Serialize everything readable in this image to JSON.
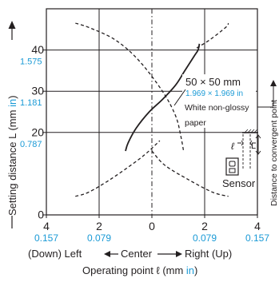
{
  "chart_data": {
    "type": "line",
    "xlim": [
      -4,
      4
    ],
    "ylim": [
      0,
      50
    ],
    "x_ticks": [
      {
        "value": -4,
        "label": "4",
        "label_in": "0.157"
      },
      {
        "value": -2,
        "label": "2",
        "label_in": "0.079"
      },
      {
        "value": 0,
        "label": "0",
        "label_in": ""
      },
      {
        "value": 2,
        "label": "2",
        "label_in": "0.079"
      },
      {
        "value": 4,
        "label": "4",
        "label_in": "0.157"
      }
    ],
    "y_ticks": [
      {
        "value": 0,
        "label": "0",
        "label_in": ""
      },
      {
        "value": 20,
        "label": "20",
        "label_in": "0.787"
      },
      {
        "value": 30,
        "label": "30",
        "label_in": "1.181"
      },
      {
        "value": 40,
        "label": "40",
        "label_in": "1.575"
      }
    ],
    "xlabel": {
      "prefix": "Operating point ℓ (mm ",
      "unit": "in",
      "suffix": ")"
    },
    "x_direction": {
      "left": "(Down) Left",
      "center": "Center",
      "right": "Right (Up)"
    },
    "ylabel": {
      "prefix": "Setting distance L (mm ",
      "unit": "in",
      "suffix": ")"
    },
    "grid": true,
    "series": [
      {
        "style": "solid",
        "points": [
          [
            -1.0,
            15.5
          ],
          [
            -0.9,
            17.5
          ],
          [
            -0.6,
            21.0
          ],
          [
            -0.1,
            25.0
          ],
          [
            0.4,
            28.0
          ],
          [
            0.9,
            31.5
          ],
          [
            1.25,
            35.0
          ],
          [
            1.6,
            38.5
          ],
          [
            1.75,
            40.0
          ],
          [
            1.8,
            41.5
          ]
        ]
      },
      {
        "style": "dashed",
        "points": [
          [
            -2.9,
            46.5
          ],
          [
            -2.4,
            45.5
          ],
          [
            -1.4,
            42.5
          ],
          [
            -0.5,
            37.5
          ],
          [
            0.4,
            30.0
          ],
          [
            0.9,
            24.0
          ],
          [
            1.1,
            19.0
          ],
          [
            1.2,
            15.5
          ]
        ]
      },
      {
        "style": "dashed",
        "points": [
          [
            -2.9,
            4.5
          ],
          [
            -2.4,
            5.5
          ],
          [
            -1.6,
            8.5
          ],
          [
            -0.7,
            12.5
          ],
          [
            -0.2,
            15.0
          ],
          [
            0.3,
            18.0
          ]
        ]
      },
      {
        "style": "dashed",
        "points": [
          [
            1.7,
            40.5
          ],
          [
            2.2,
            42.5
          ],
          [
            2.8,
            45.5
          ],
          [
            2.9,
            46.5
          ]
        ]
      },
      {
        "style": "dashed",
        "points": [
          [
            0.0,
            15.5
          ],
          [
            0.5,
            12.0
          ],
          [
            1.4,
            8.5
          ],
          [
            2.3,
            5.5
          ],
          [
            2.9,
            4.5
          ]
        ]
      }
    ],
    "annotation": {
      "size": "50 × 50 mm",
      "size_in": "1.969 × 1.969 in",
      "material_line1": "White non-glossy",
      "material_line2": "paper",
      "sensor_label": "Sensor",
      "l_symbol": "ℓ",
      "L_symbol": "L",
      "side_label": "Distance to convergent point"
    }
  }
}
